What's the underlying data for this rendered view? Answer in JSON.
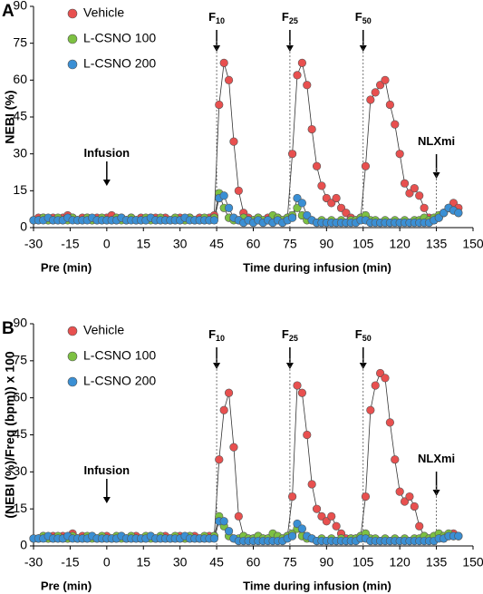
{
  "chart_data": [
    {
      "type": "line",
      "panel_label": "A",
      "y_label": "NEBI (%)",
      "x_label_pre": "Pre (min)",
      "x_label": "Time during infusion (min)",
      "xlim": [
        -30,
        150
      ],
      "xticks": [
        -30,
        -15,
        0,
        15,
        30,
        45,
        60,
        75,
        90,
        105,
        120,
        135,
        150
      ],
      "ylim": [
        0,
        90
      ],
      "yticks": [
        0,
        15,
        30,
        45,
        60,
        75,
        90
      ],
      "x": [
        -30,
        -28,
        -26,
        -24,
        -22,
        -20,
        -18,
        -16,
        -14,
        -12,
        -10,
        -8,
        -6,
        -4,
        -2,
        0,
        2,
        4,
        6,
        8,
        10,
        12,
        14,
        16,
        18,
        20,
        22,
        24,
        26,
        28,
        30,
        32,
        34,
        36,
        38,
        40,
        42,
        44,
        46,
        48,
        50,
        52,
        54,
        56,
        58,
        60,
        62,
        64,
        66,
        68,
        70,
        72,
        74,
        76,
        78,
        80,
        82,
        84,
        86,
        88,
        90,
        92,
        94,
        96,
        98,
        100,
        102,
        104,
        106,
        108,
        110,
        112,
        114,
        116,
        118,
        120,
        122,
        124,
        126,
        128,
        130,
        132,
        134,
        136,
        138,
        140,
        142,
        144
      ],
      "series": [
        {
          "name": "Vehicle",
          "color": "#e8504f",
          "values": [
            3,
            4,
            4,
            3,
            4,
            3,
            4,
            5,
            4,
            3,
            4,
            4,
            3,
            4,
            3,
            4,
            5,
            3,
            4,
            3,
            4,
            3,
            4,
            3,
            4,
            4,
            3,
            4,
            3,
            3,
            4,
            3,
            4,
            3,
            4,
            3,
            4,
            5,
            50,
            67,
            60,
            35,
            15,
            6,
            4,
            3,
            4,
            3,
            4,
            3,
            4,
            3,
            4,
            30,
            62,
            67,
            58,
            40,
            25,
            17,
            12,
            10,
            12,
            8,
            6,
            4,
            3,
            4,
            25,
            52,
            55,
            58,
            60,
            50,
            42,
            30,
            18,
            14,
            16,
            13,
            8,
            4,
            3,
            4,
            6,
            8,
            10,
            8
          ]
        },
        {
          "name": "L-CSNO 100",
          "color": "#7dc142",
          "values": [
            3,
            3,
            4,
            3,
            3,
            4,
            3,
            3,
            4,
            3,
            3,
            4,
            3,
            3,
            4,
            3,
            3,
            4,
            3,
            3,
            4,
            3,
            3,
            4,
            3,
            3,
            4,
            3,
            3,
            4,
            3,
            3,
            4,
            3,
            3,
            4,
            3,
            4,
            14,
            8,
            4,
            3,
            3,
            4,
            3,
            3,
            4,
            3,
            3,
            5,
            4,
            3,
            4,
            5,
            8,
            5,
            3,
            3,
            2,
            3,
            2,
            3,
            2,
            3,
            2,
            3,
            3,
            4,
            5,
            3,
            3,
            2,
            3,
            2,
            3,
            2,
            3,
            2,
            3,
            3,
            4,
            3,
            4,
            5,
            6,
            8,
            7,
            6
          ]
        },
        {
          "name": "L-CSNO 200",
          "color": "#3a8fd4",
          "values": [
            3,
            3,
            3,
            4,
            3,
            3,
            3,
            4,
            3,
            3,
            3,
            3,
            4,
            3,
            3,
            3,
            3,
            3,
            4,
            3,
            3,
            3,
            3,
            3,
            4,
            3,
            3,
            3,
            3,
            3,
            3,
            4,
            3,
            3,
            3,
            3,
            3,
            3,
            12,
            13,
            8,
            4,
            3,
            2,
            3,
            2,
            3,
            2,
            3,
            2,
            3,
            2,
            3,
            4,
            12,
            10,
            5,
            3,
            2,
            2,
            2,
            2,
            2,
            2,
            2,
            2,
            2,
            3,
            3,
            2,
            2,
            2,
            2,
            2,
            2,
            2,
            2,
            2,
            2,
            2,
            2,
            2,
            3,
            4,
            6,
            8,
            7,
            6
          ]
        }
      ],
      "annotations": [
        {
          "text": "Infusion",
          "x": 0
        },
        {
          "text": "F",
          "sub": "10",
          "x": 45
        },
        {
          "text": "F",
          "sub": "25",
          "x": 75
        },
        {
          "text": "F",
          "sub": "50",
          "x": 105
        },
        {
          "text": "NLXmi",
          "x": 135
        }
      ]
    },
    {
      "type": "line",
      "panel_label": "B",
      "y_label": "(NEBI (%)/Freq (bpm)) x 100",
      "x_label_pre": "Pre (min)",
      "x_label": "Time during infusion (min)",
      "xlim": [
        -30,
        150
      ],
      "xticks": [
        -30,
        -15,
        0,
        15,
        30,
        45,
        60,
        75,
        90,
        105,
        120,
        135,
        150
      ],
      "ylim": [
        0,
        90
      ],
      "yticks": [
        0,
        15,
        30,
        45,
        60,
        75,
        90
      ],
      "x": [
        -30,
        -28,
        -26,
        -24,
        -22,
        -20,
        -18,
        -16,
        -14,
        -12,
        -10,
        -8,
        -6,
        -4,
        -2,
        0,
        2,
        4,
        6,
        8,
        10,
        12,
        14,
        16,
        18,
        20,
        22,
        24,
        26,
        28,
        30,
        32,
        34,
        36,
        38,
        40,
        42,
        44,
        46,
        48,
        50,
        52,
        54,
        56,
        58,
        60,
        62,
        64,
        66,
        68,
        70,
        72,
        74,
        76,
        78,
        80,
        82,
        84,
        86,
        88,
        90,
        92,
        94,
        96,
        98,
        100,
        102,
        104,
        106,
        108,
        110,
        112,
        114,
        116,
        118,
        120,
        122,
        124,
        126,
        128,
        130,
        132,
        134,
        136,
        138,
        140,
        142,
        144
      ],
      "series": [
        {
          "name": "Vehicle",
          "color": "#e8504f",
          "values": [
            3,
            3,
            4,
            3,
            4,
            3,
            4,
            3,
            5,
            3,
            4,
            3,
            4,
            3,
            3,
            4,
            3,
            3,
            4,
            3,
            3,
            4,
            3,
            3,
            4,
            3,
            3,
            4,
            3,
            3,
            4,
            3,
            3,
            4,
            3,
            3,
            4,
            4,
            35,
            55,
            62,
            40,
            12,
            4,
            3,
            3,
            4,
            3,
            3,
            4,
            3,
            3,
            4,
            20,
            65,
            62,
            45,
            25,
            15,
            12,
            10,
            12,
            8,
            5,
            3,
            3,
            3,
            4,
            20,
            55,
            65,
            70,
            68,
            50,
            35,
            22,
            18,
            20,
            16,
            8,
            4,
            3,
            3,
            4,
            3,
            4,
            5,
            4
          ]
        },
        {
          "name": "L-CSNO 100",
          "color": "#7dc142",
          "values": [
            3,
            3,
            4,
            3,
            3,
            4,
            3,
            3,
            4,
            3,
            3,
            4,
            3,
            3,
            4,
            3,
            3,
            4,
            3,
            3,
            4,
            3,
            3,
            4,
            3,
            3,
            4,
            3,
            3,
            4,
            3,
            3,
            4,
            3,
            3,
            4,
            3,
            4,
            12,
            8,
            4,
            3,
            3,
            4,
            3,
            3,
            4,
            3,
            3,
            5,
            4,
            3,
            4,
            5,
            7,
            4,
            3,
            3,
            2,
            3,
            2,
            3,
            2,
            3,
            2,
            3,
            3,
            4,
            5,
            3,
            3,
            2,
            3,
            2,
            3,
            2,
            3,
            2,
            3,
            3,
            4,
            3,
            4,
            5,
            4,
            5,
            4,
            4
          ]
        },
        {
          "name": "L-CSNO 200",
          "color": "#3a8fd4",
          "values": [
            3,
            3,
            3,
            4,
            3,
            3,
            3,
            4,
            3,
            3,
            3,
            3,
            4,
            3,
            3,
            3,
            3,
            3,
            4,
            3,
            3,
            3,
            3,
            3,
            4,
            3,
            3,
            3,
            3,
            3,
            3,
            4,
            3,
            3,
            3,
            3,
            3,
            3,
            10,
            10,
            6,
            3,
            2,
            2,
            2,
            2,
            2,
            2,
            2,
            2,
            2,
            2,
            3,
            4,
            9,
            7,
            4,
            3,
            2,
            2,
            2,
            2,
            2,
            2,
            2,
            2,
            2,
            3,
            3,
            2,
            2,
            2,
            2,
            2,
            2,
            2,
            2,
            2,
            2,
            2,
            2,
            2,
            2,
            3,
            3,
            4,
            4,
            4
          ]
        }
      ],
      "annotations": [
        {
          "text": "Infusion",
          "x": 0
        },
        {
          "text": "F",
          "sub": "10",
          "x": 45
        },
        {
          "text": "F",
          "sub": "25",
          "x": 75
        },
        {
          "text": "F",
          "sub": "50",
          "x": 105
        },
        {
          "text": "NLXmi",
          "x": 135
        }
      ]
    }
  ]
}
